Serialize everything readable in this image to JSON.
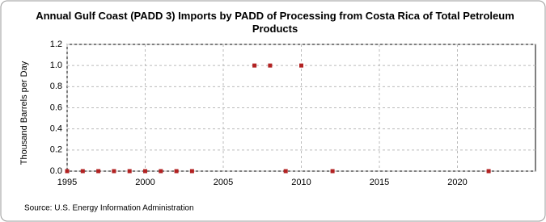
{
  "chart_data": {
    "type": "scatter",
    "title": "Annual Gulf Coast (PADD 3) Imports by PADD of Processing from Costa Rica of Total Petroleum Products",
    "y_label": "Thousand Barrels per Day",
    "source": "Source: U.S. Energy Information Administration",
    "x": [
      1995,
      1996,
      1997,
      1998,
      1999,
      2000,
      2001,
      2002,
      2003,
      2007,
      2008,
      2009,
      2010,
      2012,
      2022
    ],
    "values": [
      0,
      0,
      0,
      0,
      0,
      0,
      0,
      0,
      0,
      1,
      1,
      0,
      1,
      0,
      0
    ],
    "color": "#b22222",
    "xlim": [
      1995,
      2025
    ],
    "xticks": [
      1995,
      2000,
      2005,
      2010,
      2015,
      2020
    ],
    "ylim": [
      0,
      1.2
    ],
    "yticks": [
      {
        "value": 0,
        "label": "0.0"
      },
      {
        "value": 0.2,
        "label": "0.2"
      },
      {
        "value": 0.4,
        "label": "0.4"
      },
      {
        "value": 0.6,
        "label": "0.6"
      },
      {
        "value": 0.8,
        "label": "0.8"
      },
      {
        "value": 1,
        "label": "1.0"
      },
      {
        "value": 1.2,
        "label": "1.2"
      }
    ],
    "grid": true
  }
}
